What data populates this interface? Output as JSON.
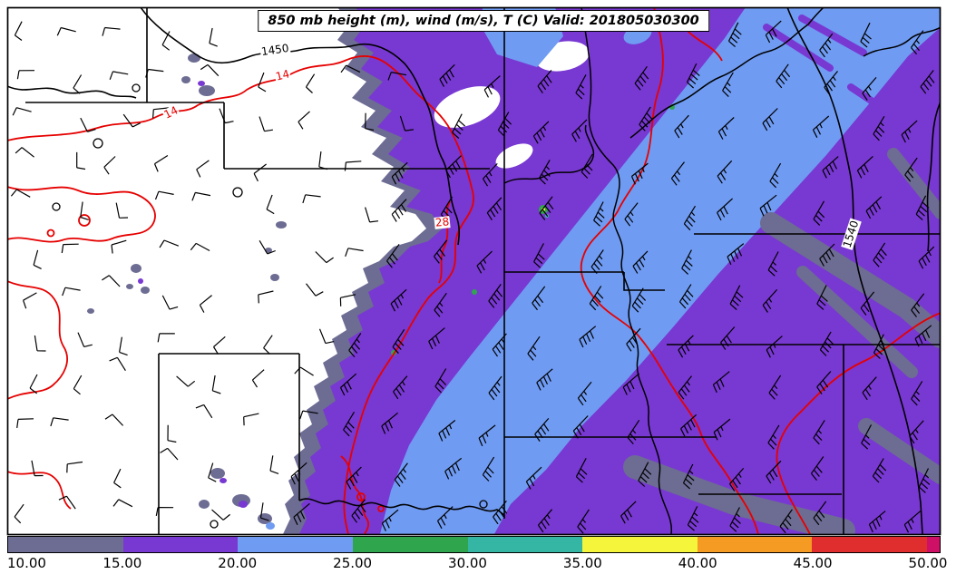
{
  "title": "850 mb height (m), wind (m/s), T (C) Valid: 201805030300",
  "colorbar": {
    "ticks": [
      "10.00",
      "15.00",
      "20.00",
      "25.00",
      "30.00",
      "35.00",
      "40.00",
      "45.00",
      "50.00"
    ],
    "segments": [
      {
        "range": "10-15",
        "color": "#6d6c93"
      },
      {
        "range": "15-20",
        "color": "#7838d2"
      },
      {
        "range": "20-25",
        "color": "#6f9bf2"
      },
      {
        "range": "25-30",
        "color": "#2fa64e"
      },
      {
        "range": "30-35",
        "color": "#35b6a5"
      },
      {
        "range": "35-40",
        "color": "#f5f53c"
      },
      {
        "range": "40-45",
        "color": "#f59a23"
      },
      {
        "range": "45-50",
        "color": "#e02d2d"
      }
    ],
    "overflow_color": "#ce1166"
  },
  "contour_labels": [
    {
      "text": "1450",
      "field": "height",
      "color": "#000000"
    },
    {
      "text": "14",
      "field": "temperature",
      "color": "#e60000"
    },
    {
      "text": "14",
      "field": "temperature",
      "color": "#e60000"
    },
    {
      "text": "28",
      "field": "temperature",
      "color": "#e60000"
    },
    {
      "text": "1540",
      "field": "height",
      "color": "#000000"
    }
  ],
  "map_colors": {
    "background": "#ffffff",
    "state_borders": "#000000",
    "height_contours": "#000000",
    "temperature_contours": "#e60000",
    "wind_barbs": "#000000",
    "fill_10_15": "#6d6c93",
    "fill_15_20": "#7838d2",
    "fill_20_25": "#6f9bf2",
    "fill_25_30": "#2fa64e"
  },
  "chart_data": {
    "type": "heatmap",
    "title": "850 mb height (m), wind (m/s), T (C) Valid: 201805030300",
    "valid_time": "201805030300",
    "level": "850 mb",
    "fields": [
      {
        "name": "wind speed",
        "units": "m/s",
        "render": "filled contours",
        "colorbar_range": [
          10,
          50
        ],
        "colorbar_tick_step": 5,
        "values_shown_on_map": [
          10,
          15,
          20,
          25
        ]
      },
      {
        "name": "geopotential height",
        "units": "m",
        "render": "black contour lines",
        "labeled_values": [
          1450,
          1540
        ]
      },
      {
        "name": "temperature",
        "units": "C",
        "render": "red contour lines",
        "labeled_values": [
          14,
          14,
          28
        ]
      },
      {
        "name": "wind",
        "units": "m/s",
        "render": "wind barbs"
      }
    ],
    "colorbar_ticks": [
      10,
      15,
      20,
      25,
      30,
      35,
      40,
      45,
      50
    ],
    "legend_position": "bottom",
    "grid": false
  }
}
